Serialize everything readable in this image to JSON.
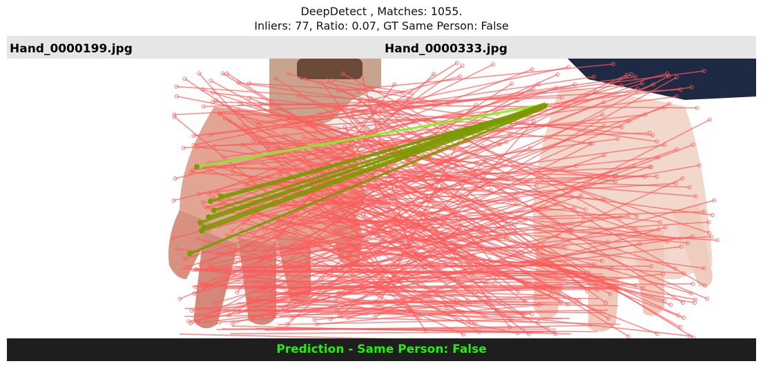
{
  "title": {
    "line1": "DeepDetect , Matches: 1055.",
    "line2": "Inliers: 77, Ratio: 0.07, GT Same Person: False"
  },
  "images": {
    "left_filename": "Hand_0000199.jpg",
    "right_filename": "Hand_0000333.jpg"
  },
  "footer": {
    "prediction": "Prediction - Same Person: False"
  },
  "colors": {
    "outlier_match": "#ff5a5a",
    "inlier_match": "#7a9a00",
    "inlier_highlight": "#88ee22",
    "prediction_text": "#22ee11",
    "header_bg": "#e6e6e6",
    "footer_bg": "#1e1e1e"
  }
}
